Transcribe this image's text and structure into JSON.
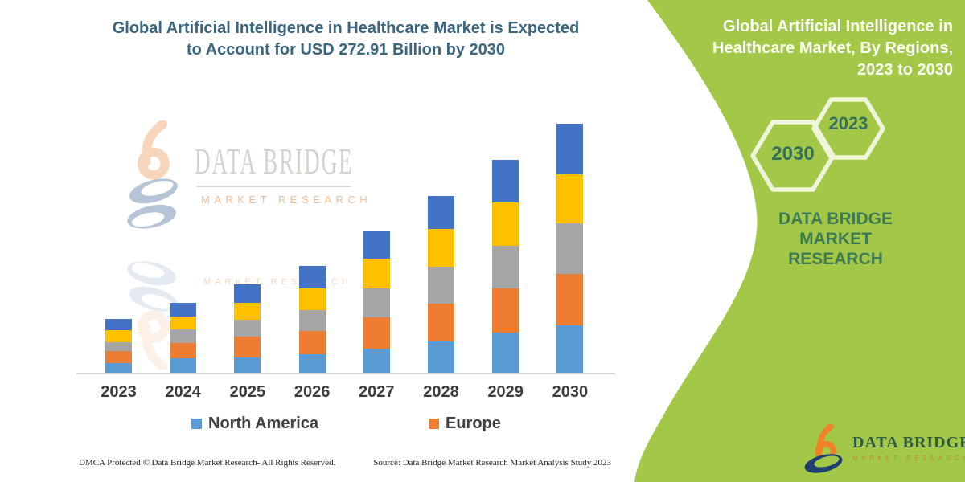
{
  "left_panel": {
    "title_lines": [
      "Global Artificial Intelligence in Healthcare Market is Expected",
      "to Account for USD 272.91 Billion by 2030"
    ],
    "watermark": {
      "brand": "DATA BRIDGE",
      "sub": "MARKET RESEARCH"
    },
    "footer": {
      "dmca": "DMCA Protected © Data Bridge Market Research-  All Rights Reserved.",
      "source": "Source: Data Bridge Market Research  Market Analysis Study 2023"
    }
  },
  "chart_data": {
    "type": "bar",
    "stacked": true,
    "title": "Global Artificial Intelligence in Healthcare Market is Expected to Account for USD 272.91 Billion by 2030",
    "unit": "USD Billion (segment values estimated from bar heights; 2030 total = 272.91)",
    "categories": [
      "2023",
      "2024",
      "2025",
      "2026",
      "2027",
      "2028",
      "2029",
      "2030"
    ],
    "series": [
      {
        "name": "North America",
        "color": "#5B9BD5",
        "values": [
          11.4,
          16.7,
          17.5,
          21.1,
          27.2,
          35.1,
          44.8,
          52.7
        ]
      },
      {
        "name": "Europe",
        "color": "#ED7D31",
        "values": [
          13.2,
          16.7,
          22.8,
          25.4,
          34.2,
          41.2,
          48.3,
          56.2
        ]
      },
      {
        "name": "",
        "color": "#A5A5A5",
        "values": [
          9.7,
          14.9,
          18.4,
          22.8,
          31.6,
          40.4,
          46.5,
          55.3
        ]
      },
      {
        "name": "",
        "color": "#FFC000",
        "values": [
          13.2,
          14.0,
          18.4,
          23.7,
          32.5,
          41.2,
          47.4,
          53.5
        ]
      },
      {
        "name": "",
        "color": "#4472C4",
        "values": [
          12.3,
          14.9,
          20.2,
          24.6,
          29.8,
          36.0,
          46.5,
          55.3
        ]
      }
    ],
    "totals_estimated": [
      59.8,
      77.2,
      97.3,
      117.6,
      155.3,
      193.9,
      233.5,
      272.91
    ],
    "legend": [
      {
        "label": "North America",
        "color": "#5B9BD5"
      },
      {
        "label": "Europe",
        "color": "#ED7D31"
      }
    ],
    "legend_position": "bottom",
    "grid": false,
    "xlabel": "",
    "ylabel": "",
    "axis_line_color": "#D8D8D8"
  },
  "right_panel": {
    "bg_color": "#A3C848",
    "title_lines": [
      "Global Artificial Intelligence in",
      "Healthcare Market, By Regions,",
      "2023 to 2030"
    ],
    "hexagons": [
      {
        "label": "2030"
      },
      {
        "label": "2023"
      }
    ],
    "brand_lines": [
      "DATA BRIDGE MARKET",
      "RESEARCH"
    ],
    "logo": {
      "brand": "DATA BRIDGE",
      "sub": "MARKET RESEARCH"
    }
  }
}
